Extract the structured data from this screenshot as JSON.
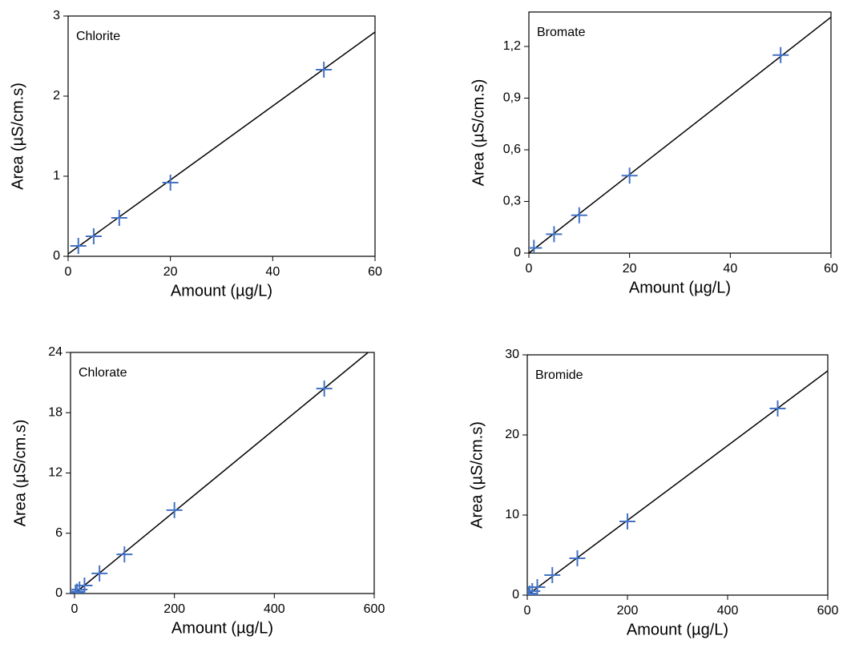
{
  "chart_data": [
    {
      "type": "scatter",
      "title": "Chlorite",
      "xlabel": "Amount (µg/L)",
      "ylabel": "Area (µS/cm.s)",
      "color": "#4472c4",
      "x": [
        2,
        5,
        10,
        20,
        50
      ],
      "values": [
        0.13,
        0.25,
        0.48,
        0.92,
        2.33
      ],
      "trendline": {
        "x": [
          0,
          60
        ],
        "values": [
          0.03,
          2.8
        ],
        "color": "#000000"
      },
      "xlim": [
        0,
        60
      ],
      "ylim": [
        0,
        3
      ],
      "xticks": [
        0,
        20,
        40,
        60
      ],
      "yticks": [
        0,
        1,
        2,
        3
      ]
    },
    {
      "type": "scatter",
      "title": "Bromate",
      "xlabel": "Amount (µg/L)",
      "ylabel": "Area (µS/cm.s)",
      "color": "#4472c4",
      "x": [
        1,
        5,
        10,
        20,
        50
      ],
      "values": [
        0.03,
        0.11,
        0.22,
        0.45,
        1.15
      ],
      "trendline": {
        "x": [
          0,
          60
        ],
        "values": [
          0,
          1.37
        ],
        "color": "#000000"
      },
      "xlim": [
        0,
        60
      ],
      "ylim": [
        0,
        1.4
      ],
      "xticks": [
        0,
        20,
        40,
        60
      ],
      "yticks": [
        0,
        {
          "value": 0.3,
          "label": "0,3"
        },
        {
          "value": 0.6,
          "label": "0,6"
        },
        {
          "value": 0.9,
          "label": "0,9"
        },
        {
          "value": 1.2,
          "label": "1,2"
        }
      ]
    },
    {
      "type": "scatter",
      "title": "Chlorate",
      "xlabel": "Amount (µg/L)",
      "ylabel": "Area (µS/cm.s)",
      "color": "#4472c4",
      "x": [
        2,
        5,
        10,
        20,
        50,
        100,
        200,
        500
      ],
      "values": [
        0.1,
        0.2,
        0.4,
        0.8,
        2,
        3.9,
        8.3,
        20.4
      ],
      "trendline": {
        "x": [
          0,
          600
        ],
        "values": [
          0,
          24.5
        ],
        "color": "#000000"
      },
      "xlim": [
        -8,
        600
      ],
      "ylim": [
        0,
        24
      ],
      "xticks": [
        0,
        200,
        400,
        600
      ],
      "yticks": [
        0,
        6,
        12,
        18,
        24
      ]
    },
    {
      "type": "scatter",
      "title": "Bromide",
      "xlabel": "Amount (µg/L)",
      "ylabel": "Area (µS/cm.s)",
      "color": "#4472c4",
      "x": [
        2,
        5,
        10,
        20,
        50,
        100,
        200,
        500
      ],
      "values": [
        0.1,
        0.2,
        0.5,
        1,
        2.5,
        4.6,
        9.2,
        23.3
      ],
      "trendline": {
        "x": [
          0,
          600
        ],
        "values": [
          0,
          28
        ],
        "color": "#000000"
      },
      "xlim": [
        0,
        600
      ],
      "ylim": [
        0,
        30
      ],
      "xticks": [
        0,
        200,
        400,
        600
      ],
      "yticks": [
        0,
        10,
        20,
        30
      ]
    }
  ]
}
